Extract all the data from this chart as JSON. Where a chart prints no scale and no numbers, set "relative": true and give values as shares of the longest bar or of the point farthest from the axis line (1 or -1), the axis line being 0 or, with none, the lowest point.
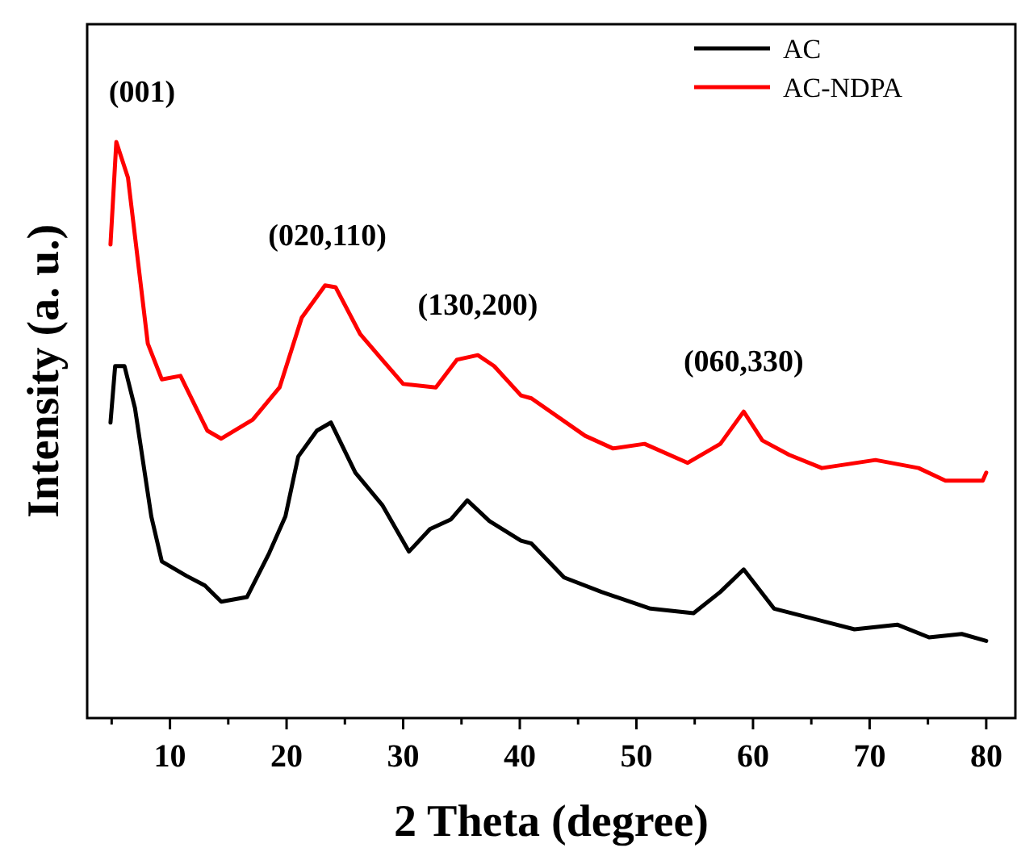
{
  "chart_data": {
    "type": "line",
    "relative": true,
    "xlabel": "2 Theta (degree)",
    "ylabel": "Intensity (a. u.)",
    "xlim": [
      2.9,
      82.5
    ],
    "xticks": [
      {
        "value": 5,
        "label": null
      },
      10,
      {
        "value": 15,
        "label": null
      },
      20,
      {
        "value": 25,
        "label": null
      },
      30,
      {
        "value": 35,
        "label": null
      },
      40,
      {
        "value": 45,
        "label": null
      },
      50,
      {
        "value": 55,
        "label": null
      },
      60,
      {
        "value": 65,
        "label": null
      },
      70,
      {
        "value": 75,
        "label": null
      },
      80
    ],
    "tick_labels": "x",
    "legend": "top right",
    "grid": false,
    "marker": "none",
    "line_style": "solid",
    "annotations": [
      {
        "text": "(001)",
        "x": 5.4,
        "y": 1.0
      },
      {
        "text": "(020,110)",
        "x": 23.5,
        "y": 0.751
      },
      {
        "text": "(130,200)",
        "x": 36.4,
        "y": 0.63
      },
      {
        "text": "(060,330)",
        "x": 59.2,
        "y": 0.532
      }
    ],
    "series": [
      {
        "name": "AC",
        "color": "#000000",
        "x": [
          4.9,
          5.3,
          6.1,
          7.0,
          8.4,
          9.3,
          11.4,
          13.0,
          14.4,
          16.6,
          18.5,
          19.9,
          21.0,
          22.6,
          23.8,
          25.9,
          28.2,
          30.5,
          32.3,
          34.1,
          35.5,
          37.4,
          40.1,
          41.0,
          43.8,
          47.0,
          51.2,
          54.9,
          57.2,
          59.2,
          61.8,
          64.5,
          68.7,
          72.4,
          75.1,
          77.9,
          80
        ],
        "values": [
          0.513,
          0.611,
          0.611,
          0.538,
          0.35,
          0.272,
          0.247,
          0.23,
          0.202,
          0.21,
          0.286,
          0.35,
          0.454,
          0.499,
          0.513,
          0.426,
          0.37,
          0.289,
          0.328,
          0.345,
          0.378,
          0.342,
          0.308,
          0.303,
          0.244,
          0.219,
          0.19,
          0.182,
          0.219,
          0.258,
          0.19,
          0.176,
          0.154,
          0.162,
          0.14,
          0.146,
          0.134
        ]
      },
      {
        "name": "AC-NDPA",
        "color": "#ff0000",
        "x": [
          4.9,
          5.4,
          6.4,
          8.1,
          9.3,
          10.9,
          13.2,
          14.4,
          17.1,
          19.4,
          21.3,
          23.3,
          24.2,
          26.3,
          28.2,
          30.0,
          32.8,
          34.6,
          36.4,
          37.8,
          40.1,
          41.0,
          45.6,
          48.0,
          50.7,
          54.4,
          57.2,
          59.2,
          60.8,
          63.1,
          65.9,
          70.5,
          74.2,
          76.5,
          79.7,
          80
        ],
        "values": [
          0.822,
          1.0,
          0.938,
          0.65,
          0.588,
          0.594,
          0.499,
          0.485,
          0.518,
          0.574,
          0.695,
          0.751,
          0.748,
          0.667,
          0.622,
          0.58,
          0.574,
          0.622,
          0.63,
          0.611,
          0.56,
          0.555,
          0.49,
          0.468,
          0.476,
          0.443,
          0.476,
          0.532,
          0.482,
          0.457,
          0.434,
          0.448,
          0.434,
          0.412,
          0.412,
          0.426
        ]
      }
    ]
  }
}
